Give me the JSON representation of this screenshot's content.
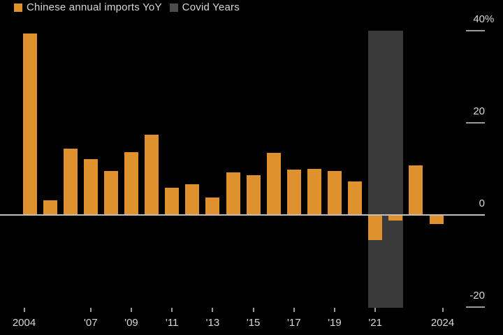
{
  "colors": {
    "background": "#000000",
    "bar": "#DF912D",
    "covid_band": "#3A3A3B",
    "legend_covid_swatch": "#4C4C4E",
    "text": "#D8D8D8",
    "zero_line": "#BEBEBE",
    "tick": "#9B9B9B"
  },
  "legend": {
    "items": [
      {
        "label": "Chinese annual imports YoY",
        "swatch": "bar"
      },
      {
        "label": "Covid Years",
        "swatch": "legend_covid_swatch"
      }
    ]
  },
  "chart_data": {
    "type": "bar",
    "title": "",
    "series_name": "Chinese annual imports YoY",
    "unit": "%",
    "categories": [
      2004,
      2005,
      2006,
      2007,
      2008,
      2009,
      2010,
      2011,
      2012,
      2013,
      2014,
      2015,
      2016,
      2017,
      2018,
      2019,
      2020,
      2021,
      2022,
      2023,
      2024
    ],
    "values": [
      39.5,
      3.2,
      14.4,
      12.2,
      9.5,
      13.7,
      17.5,
      5.9,
      6.7,
      3.8,
      9.3,
      8.7,
      13.5,
      9.9,
      10.0,
      9.6,
      7.3,
      -5.4,
      -1.2,
      10.8,
      -2.0
    ],
    "covid_band": {
      "label": "Covid Years",
      "years": [
        2021,
        2022
      ]
    },
    "grid": false,
    "legend_position": "top-left",
    "y_axis": {
      "side": "right",
      "range": [
        -20,
        40
      ],
      "ticks": [
        {
          "value": 40,
          "label": "40",
          "suffix": "%"
        },
        {
          "value": 20,
          "label": "20",
          "suffix": ""
        },
        {
          "value": 0,
          "label": "0",
          "suffix": ""
        },
        {
          "value": -20,
          "label": "-20",
          "suffix": ""
        }
      ]
    },
    "x_axis": {
      "ticks": [
        {
          "year": 2004,
          "label": "2004",
          "edge": "start"
        },
        {
          "year": 2007,
          "label": "'07"
        },
        {
          "year": 2009,
          "label": "'09"
        },
        {
          "year": 2011,
          "label": "'11"
        },
        {
          "year": 2013,
          "label": "'13"
        },
        {
          "year": 2015,
          "label": "'15"
        },
        {
          "year": 2017,
          "label": "'17"
        },
        {
          "year": 2019,
          "label": "'19"
        },
        {
          "year": 2021,
          "label": "'21"
        },
        {
          "year": 2024,
          "label": "2024",
          "edge": "end"
        }
      ]
    }
  }
}
